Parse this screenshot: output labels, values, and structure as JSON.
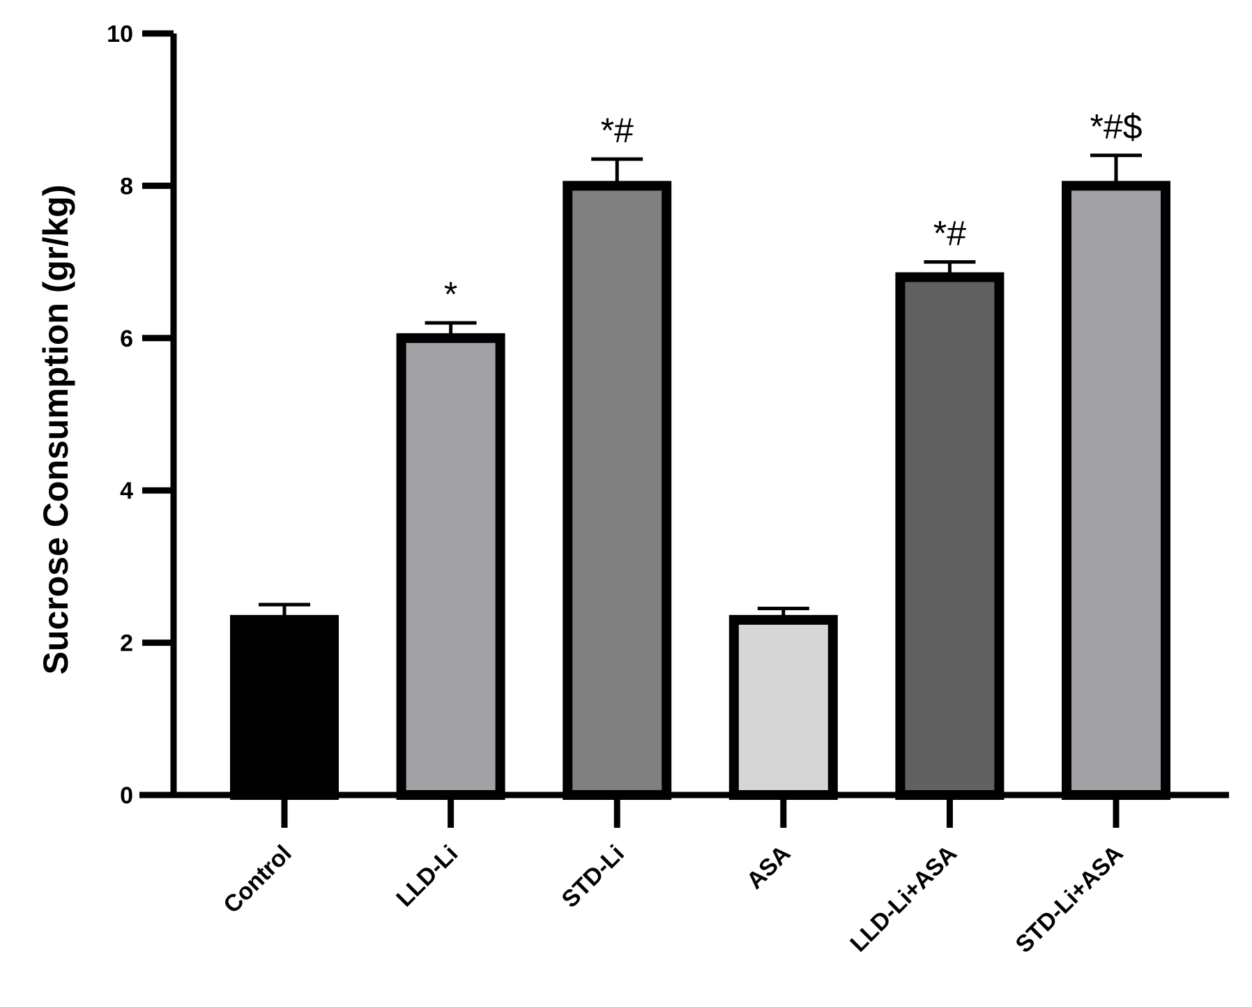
{
  "chart_data": {
    "type": "bar",
    "title": "",
    "xlabel": "",
    "ylabel": "Sucrose Consumption (gr/kg)",
    "ylim": [
      0,
      10
    ],
    "yticks": [
      0,
      2,
      4,
      6,
      8,
      10
    ],
    "yticks_labels": [
      "0",
      "2",
      "4",
      "6",
      "8",
      "10"
    ],
    "grid": false,
    "legend": "none",
    "categories": [
      "Control",
      "LLD-Li",
      "STD-Li",
      "ASA",
      "LLD-Li+ASA",
      "STD-Li+ASA"
    ],
    "values": [
      2.3,
      6.0,
      8.0,
      2.3,
      6.8,
      8.0
    ],
    "errors": [
      0.2,
      0.2,
      0.35,
      0.15,
      0.2,
      0.4
    ],
    "annotations": [
      "",
      "*",
      "*#",
      "",
      "*#",
      "*#$"
    ],
    "colors": [
      "#000000",
      "#a2a1a6",
      "#808080",
      "#d6d6d6",
      "#616161",
      "#a2a1a6"
    ],
    "edge_color": "#000000"
  }
}
